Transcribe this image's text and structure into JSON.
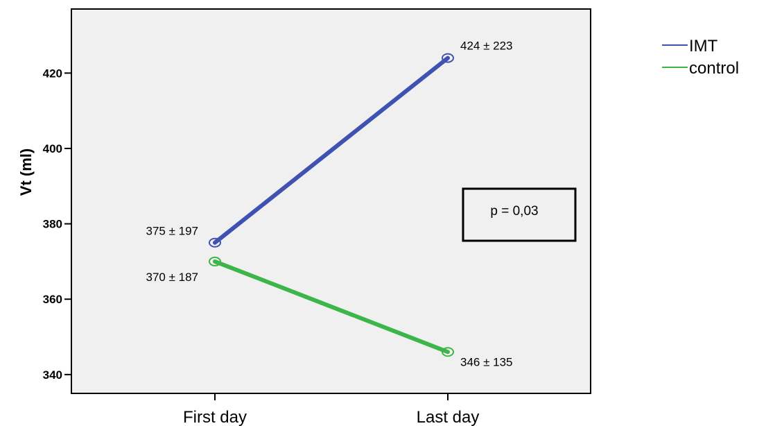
{
  "chart_data": {
    "type": "line",
    "title": "",
    "xlabel": "",
    "ylabel": "Vt (ml)",
    "categories": [
      "First day",
      "Last day"
    ],
    "ylim": [
      335,
      437
    ],
    "yticks": [
      340,
      360,
      380,
      400,
      420
    ],
    "grid": false,
    "legend_position": "outside-right",
    "series": [
      {
        "name": "IMT",
        "color": "#3f51b1",
        "values": [
          375,
          424
        ],
        "labels": [
          "375 ± 197",
          "424 ± 223"
        ]
      },
      {
        "name": "control",
        "color": "#3db54a",
        "values": [
          370,
          346
        ],
        "labels": [
          "370 ± 187",
          "346 ± 135"
        ]
      }
    ],
    "annotation": "p = 0,03",
    "plot_background": "#f0f0f0"
  }
}
